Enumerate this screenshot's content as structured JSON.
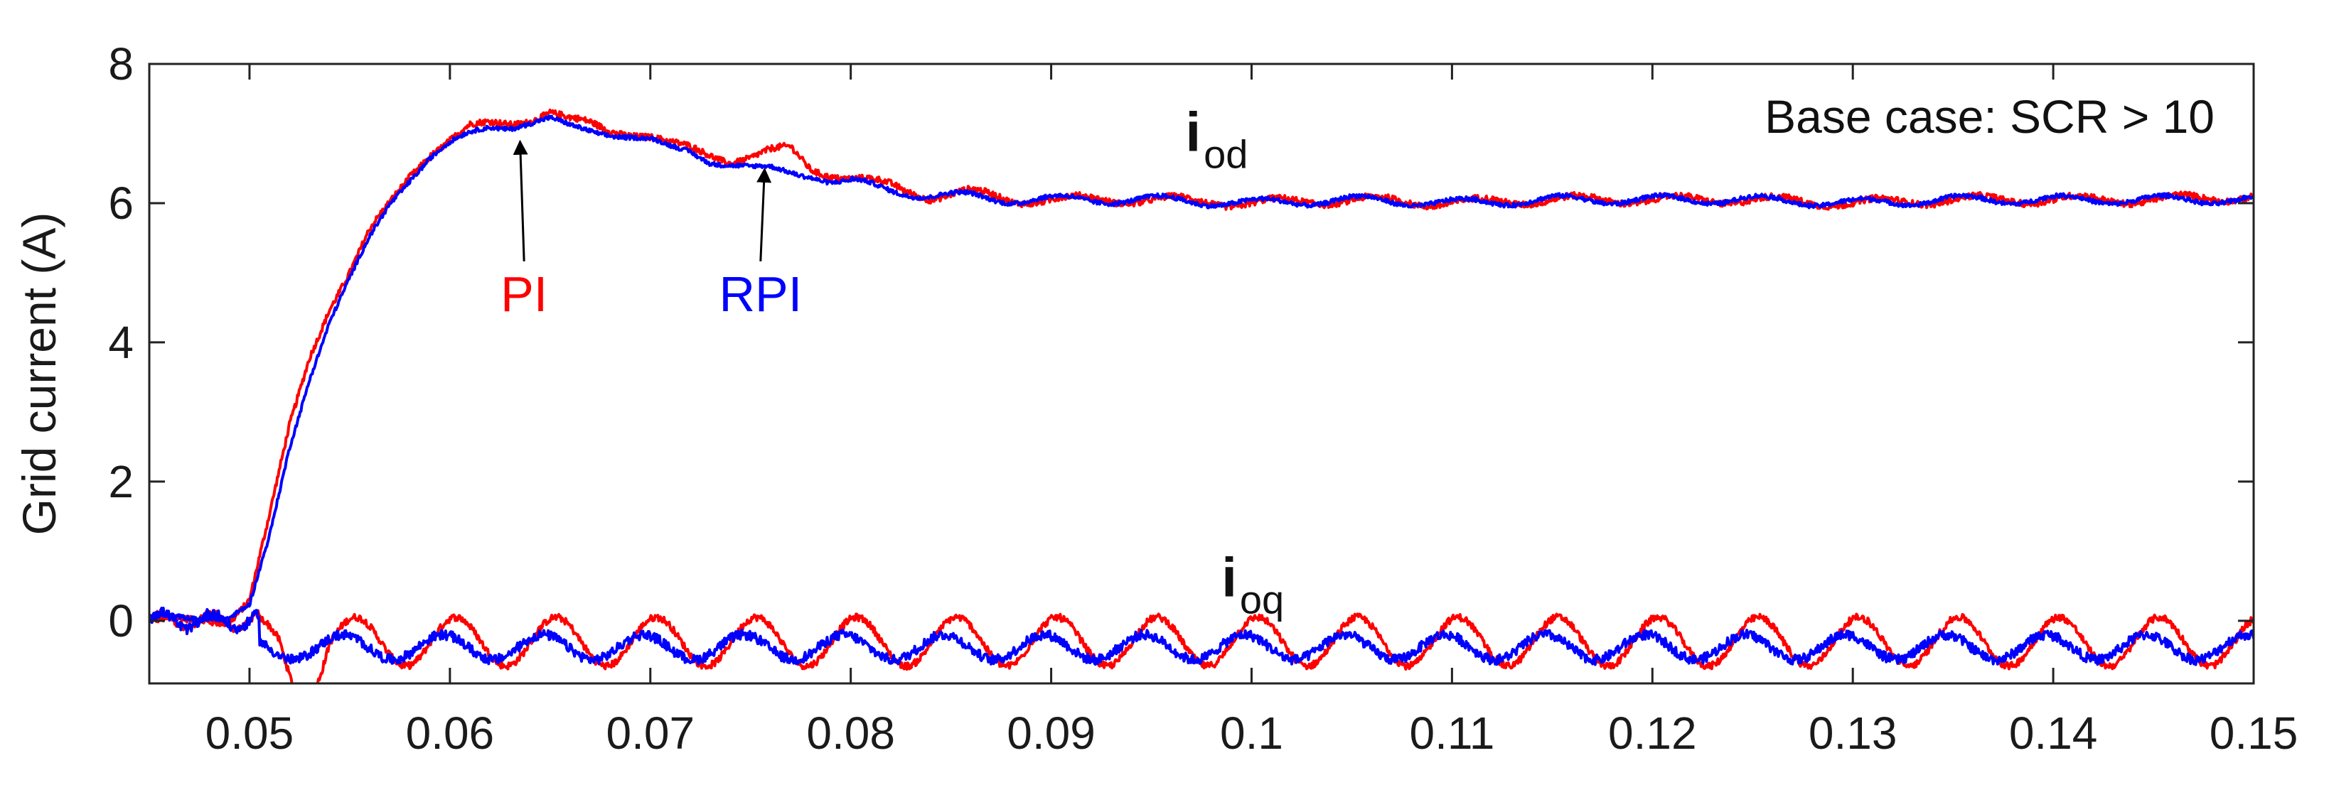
{
  "chart_data": {
    "type": "line",
    "title": "",
    "xlabel": "",
    "ylabel": "Grid current (A)",
    "xlim": [
      0.045,
      0.15
    ],
    "ylim": [
      -0.9,
      8
    ],
    "xticks": [
      0.05,
      0.06,
      0.07,
      0.08,
      0.09,
      0.1,
      0.11,
      0.12,
      0.13,
      0.14,
      0.15
    ],
    "xtick_labels": [
      "0.05",
      "0.06",
      "0.07",
      "0.08",
      "0.09",
      "0.1",
      "0.11",
      "0.12",
      "0.13",
      "0.14",
      "0.15"
    ],
    "yticks": [
      0,
      2,
      4,
      6,
      8
    ],
    "ytick_labels": [
      "0",
      "2",
      "4",
      "6",
      "8"
    ],
    "grid": false,
    "annotation": "Base case: SCR > 10",
    "signal_labels": [
      {
        "main": "i",
        "sub": "od",
        "x": 0.0967,
        "y": 6.75
      },
      {
        "main": "i",
        "sub": "oq",
        "x": 0.0985,
        "y": 0.35
      }
    ],
    "trace_labels": [
      {
        "text": "PI",
        "color": "#ff0000",
        "label_x": 0.0637,
        "label_y": 4.45,
        "arrow_to_x": 0.0635,
        "arrow_to_y": 6.95
      },
      {
        "text": "RPI",
        "color": "#0000ff",
        "label_x": 0.0755,
        "label_y": 4.45,
        "arrow_to_x": 0.0757,
        "arrow_to_y": 6.55
      }
    ],
    "series": [
      {
        "name": "PI",
        "color": "#ff0000",
        "x": [
          0.045,
          0.047,
          0.049,
          0.05,
          0.051,
          0.052,
          0.053,
          0.054,
          0.055,
          0.056,
          0.057,
          0.058,
          0.059,
          0.06,
          0.061,
          0.062,
          0.063,
          0.064,
          0.065,
          0.066,
          0.067,
          0.068,
          0.069,
          0.07,
          0.071,
          0.072,
          0.073,
          0.074,
          0.075,
          0.076,
          0.077,
          0.078,
          0.079,
          0.08,
          0.082,
          0.084,
          0.086,
          0.088,
          0.09,
          0.095,
          0.1,
          0.105,
          0.11,
          0.115,
          0.12,
          0.125,
          0.13,
          0.135,
          0.14,
          0.145,
          0.15
        ],
        "id": [
          0.0,
          0.0,
          0.0,
          0.3,
          1.5,
          2.8,
          3.8,
          4.5,
          5.0,
          5.6,
          6.0,
          6.4,
          6.7,
          6.9,
          7.1,
          7.15,
          7.15,
          7.2,
          7.3,
          7.2,
          7.15,
          7.05,
          7.0,
          6.95,
          6.85,
          6.8,
          6.7,
          6.6,
          6.65,
          6.75,
          6.8,
          6.5,
          6.4,
          6.35,
          6.25,
          6.1,
          6.15,
          6.05,
          6.05,
          6.05,
          6.0,
          6.05,
          6.0,
          6.05,
          6.05,
          6.05,
          6.0,
          6.05,
          6.05,
          6.05,
          6.1
        ],
        "iq_mean": -0.3,
        "iq_ripple_amplitude": 0.35
      },
      {
        "name": "RPI",
        "color": "#0000ff",
        "x": [
          0.045,
          0.047,
          0.049,
          0.05,
          0.051,
          0.052,
          0.053,
          0.054,
          0.055,
          0.056,
          0.057,
          0.058,
          0.059,
          0.06,
          0.061,
          0.062,
          0.063,
          0.064,
          0.065,
          0.066,
          0.067,
          0.068,
          0.069,
          0.07,
          0.071,
          0.072,
          0.073,
          0.074,
          0.075,
          0.076,
          0.077,
          0.078,
          0.079,
          0.08,
          0.082,
          0.084,
          0.086,
          0.088,
          0.09,
          0.095,
          0.1,
          0.105,
          0.11,
          0.115,
          0.12,
          0.125,
          0.13,
          0.135,
          0.14,
          0.145,
          0.15
        ],
        "id": [
          0.05,
          0.05,
          0.05,
          0.2,
          1.2,
          2.5,
          3.5,
          4.3,
          4.9,
          5.5,
          6.0,
          6.35,
          6.65,
          6.85,
          7.0,
          7.1,
          7.1,
          7.15,
          7.2,
          7.1,
          7.05,
          7.0,
          6.95,
          6.9,
          6.8,
          6.75,
          6.6,
          6.55,
          6.5,
          6.5,
          6.45,
          6.4,
          6.3,
          6.3,
          6.2,
          6.1,
          6.1,
          6.05,
          6.05,
          6.05,
          6.0,
          6.05,
          6.0,
          6.05,
          6.05,
          6.05,
          6.0,
          6.05,
          6.05,
          6.05,
          6.05
        ],
        "iq_mean": -0.38,
        "iq_ripple_amplitude": 0.18
      }
    ]
  }
}
